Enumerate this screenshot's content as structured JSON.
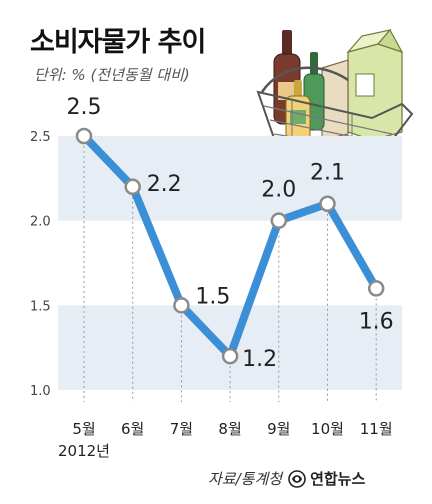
{
  "title": "소비자물가 추이",
  "subtitle": "단위: % (전년동월 대비)",
  "source": "자료/통계청",
  "logo_text": "연합뉴스",
  "chart_data": {
    "type": "line",
    "categories": [
      "5월",
      "6월",
      "7월",
      "8월",
      "9월",
      "10월",
      "11월"
    ],
    "first_category_year": "2012년",
    "values": [
      2.5,
      2.2,
      1.5,
      1.2,
      2.0,
      2.1,
      1.6
    ],
    "value_labels": [
      "2.5",
      "2.2",
      "1.5",
      "1.2",
      "2.0",
      "2.1",
      "1.6"
    ],
    "yticks": [
      1.0,
      1.5,
      2.0,
      2.5
    ],
    "ytick_labels": [
      "1.0",
      "1.5",
      "2.0",
      "2.5"
    ],
    "ylim": [
      1.0,
      2.5
    ],
    "grid": "alternating horizontal bands",
    "colors": {
      "line": "#3b8fd6",
      "band": "#e6edf5",
      "marker_fill": "#ffffff",
      "marker_stroke": "#8a8a8a"
    }
  }
}
